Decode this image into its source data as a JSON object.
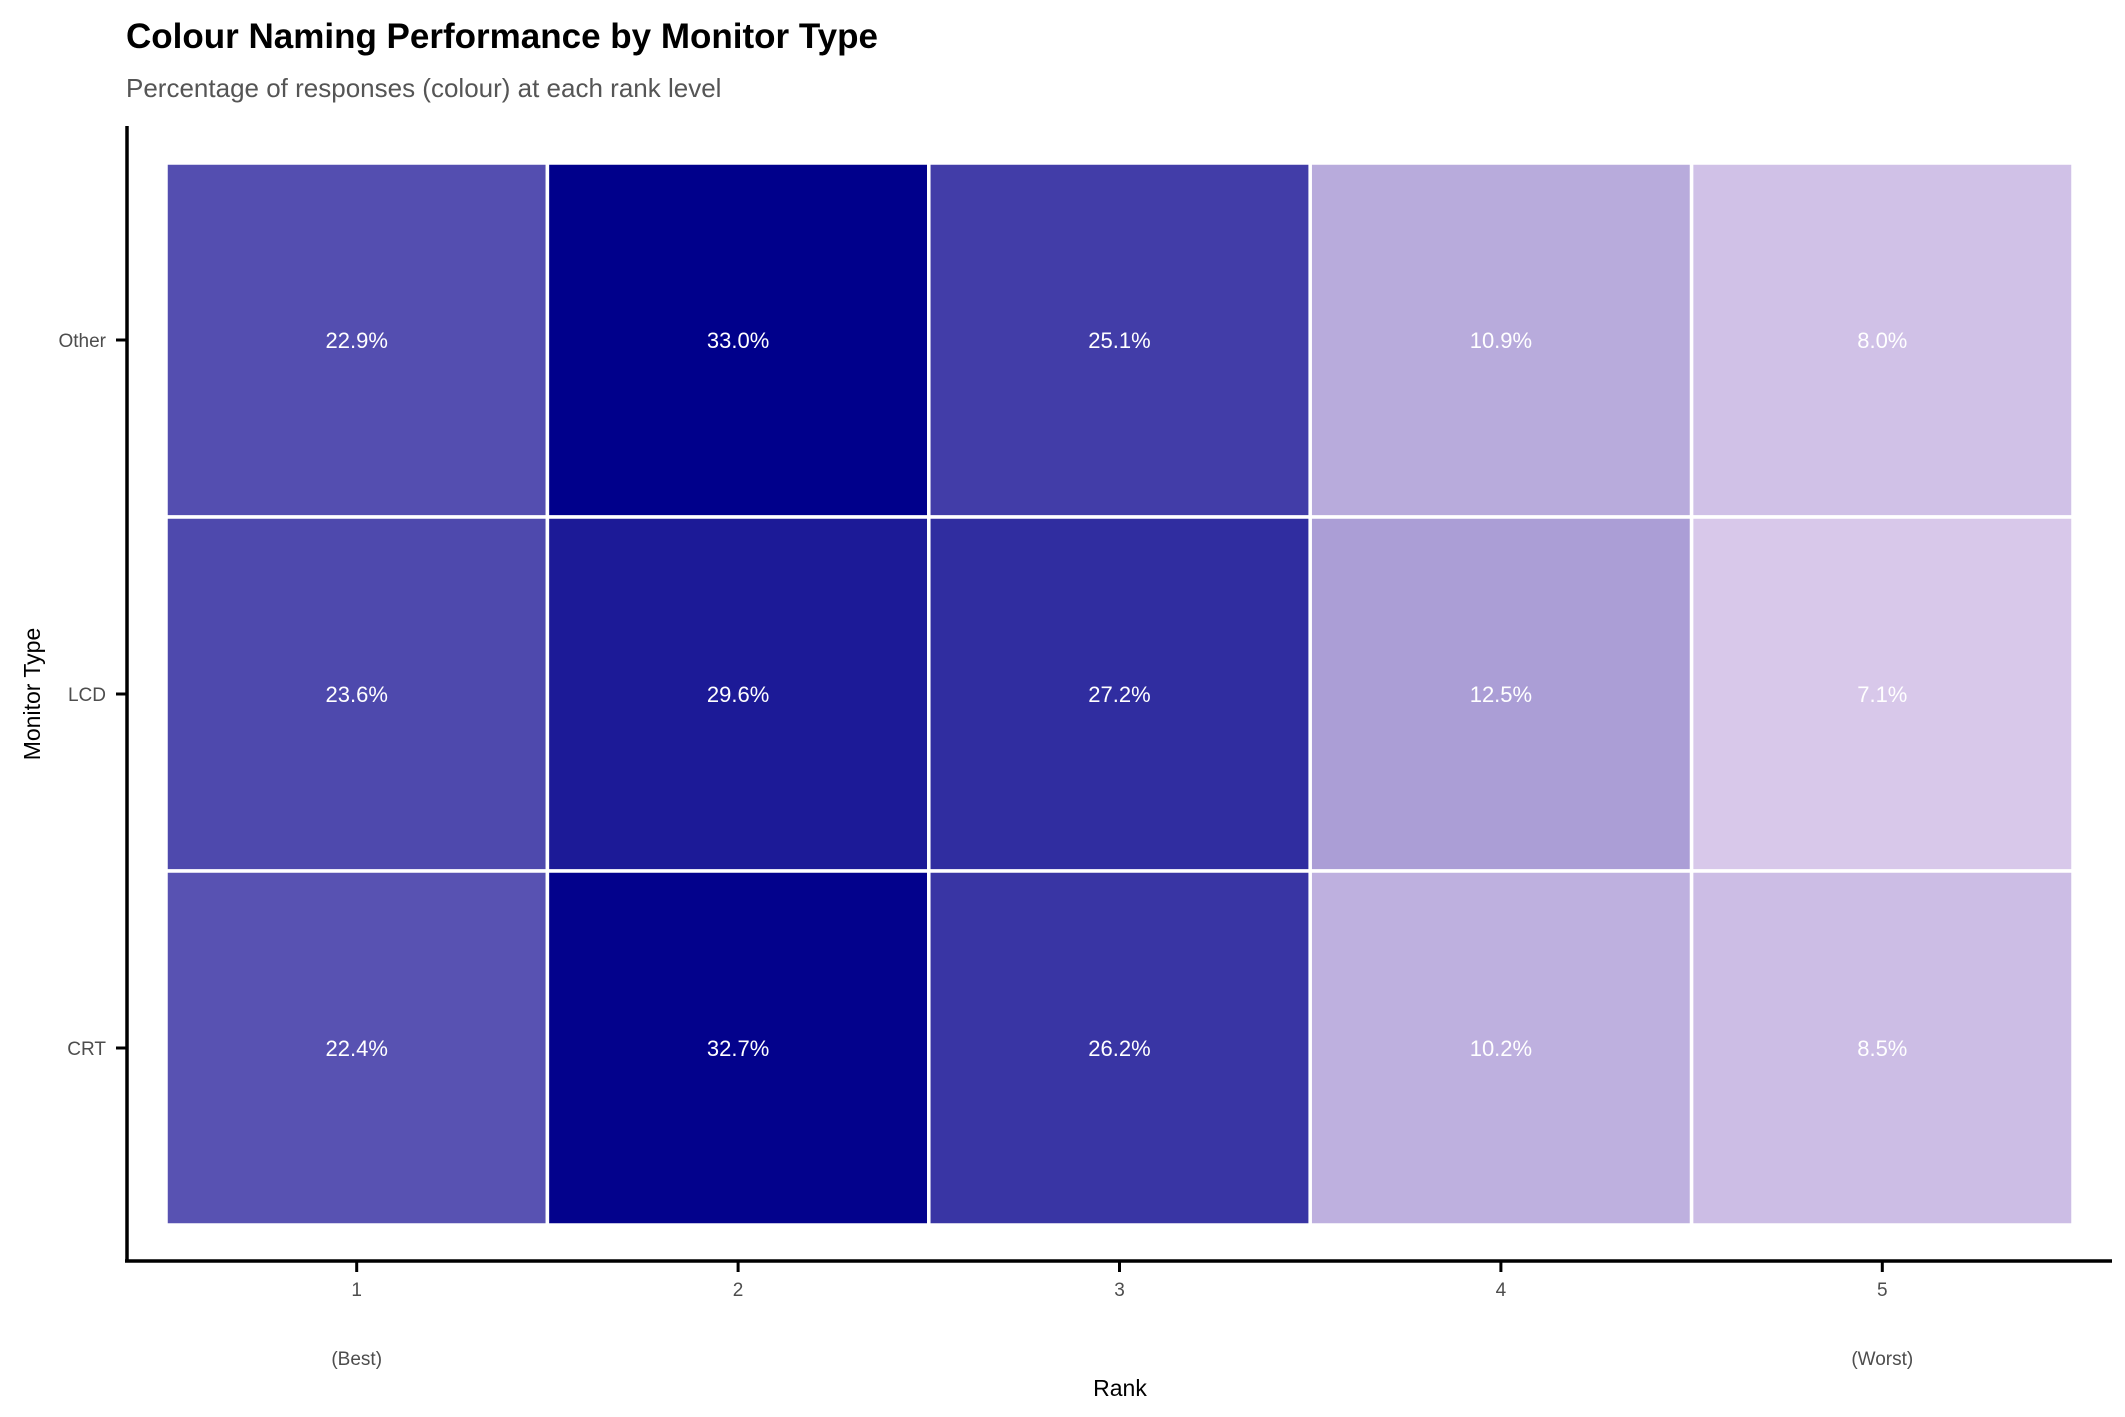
{
  "chart_data": {
    "type": "heatmap",
    "title": "Colour Naming Performance by Monitor Type",
    "subtitle": "Percentage of responses (colour) at each rank level",
    "xlabel": "Rank",
    "ylabel": "Monitor Type",
    "x_categories": [
      "1",
      "2",
      "3",
      "4",
      "5"
    ],
    "x_sublabels": [
      "(Best)",
      "",
      "",
      "",
      "(Worst)"
    ],
    "y_categories": [
      "Other",
      "LCD",
      "CRT"
    ],
    "values": [
      [
        22.9,
        33.0,
        25.1,
        10.9,
        8.0
      ],
      [
        23.6,
        29.6,
        27.2,
        12.5,
        7.1
      ],
      [
        22.4,
        32.7,
        26.2,
        10.2,
        8.5
      ]
    ],
    "labels": [
      [
        "22.9%",
        "33.0%",
        "25.1%",
        "10.9%",
        "8.0%"
      ],
      [
        "23.6%",
        "29.6%",
        "27.2%",
        "12.5%",
        "7.1%"
      ],
      [
        "22.4%",
        "32.7%",
        "26.2%",
        "10.2%",
        "8.5%"
      ]
    ],
    "color_scale": {
      "low": "#d8c8ea",
      "high": "#00008b"
    },
    "grid": false,
    "legend": "none"
  }
}
